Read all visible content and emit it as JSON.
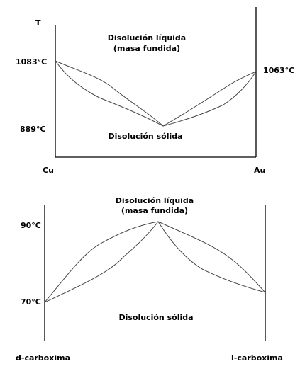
{
  "diagram1": {
    "axis_label": "T",
    "region_top_line1": "Disolución líquida",
    "region_top_line2": "(masa fundida)",
    "region_bottom": "Disolución sólida",
    "left_temp": "1083°C",
    "right_temp": "1063°C",
    "min_temp": "889°C",
    "left_component": "Cu",
    "right_component": "Au"
  },
  "diagram2": {
    "region_top_line1": "Disolución líquida",
    "region_top_line2": "(masa fundida)",
    "region_bottom": "Disolución sólida",
    "max_temp": "90°C",
    "edge_temp": "70°C",
    "left_component": "d-carboxima",
    "right_component": "l-carboxima"
  }
}
